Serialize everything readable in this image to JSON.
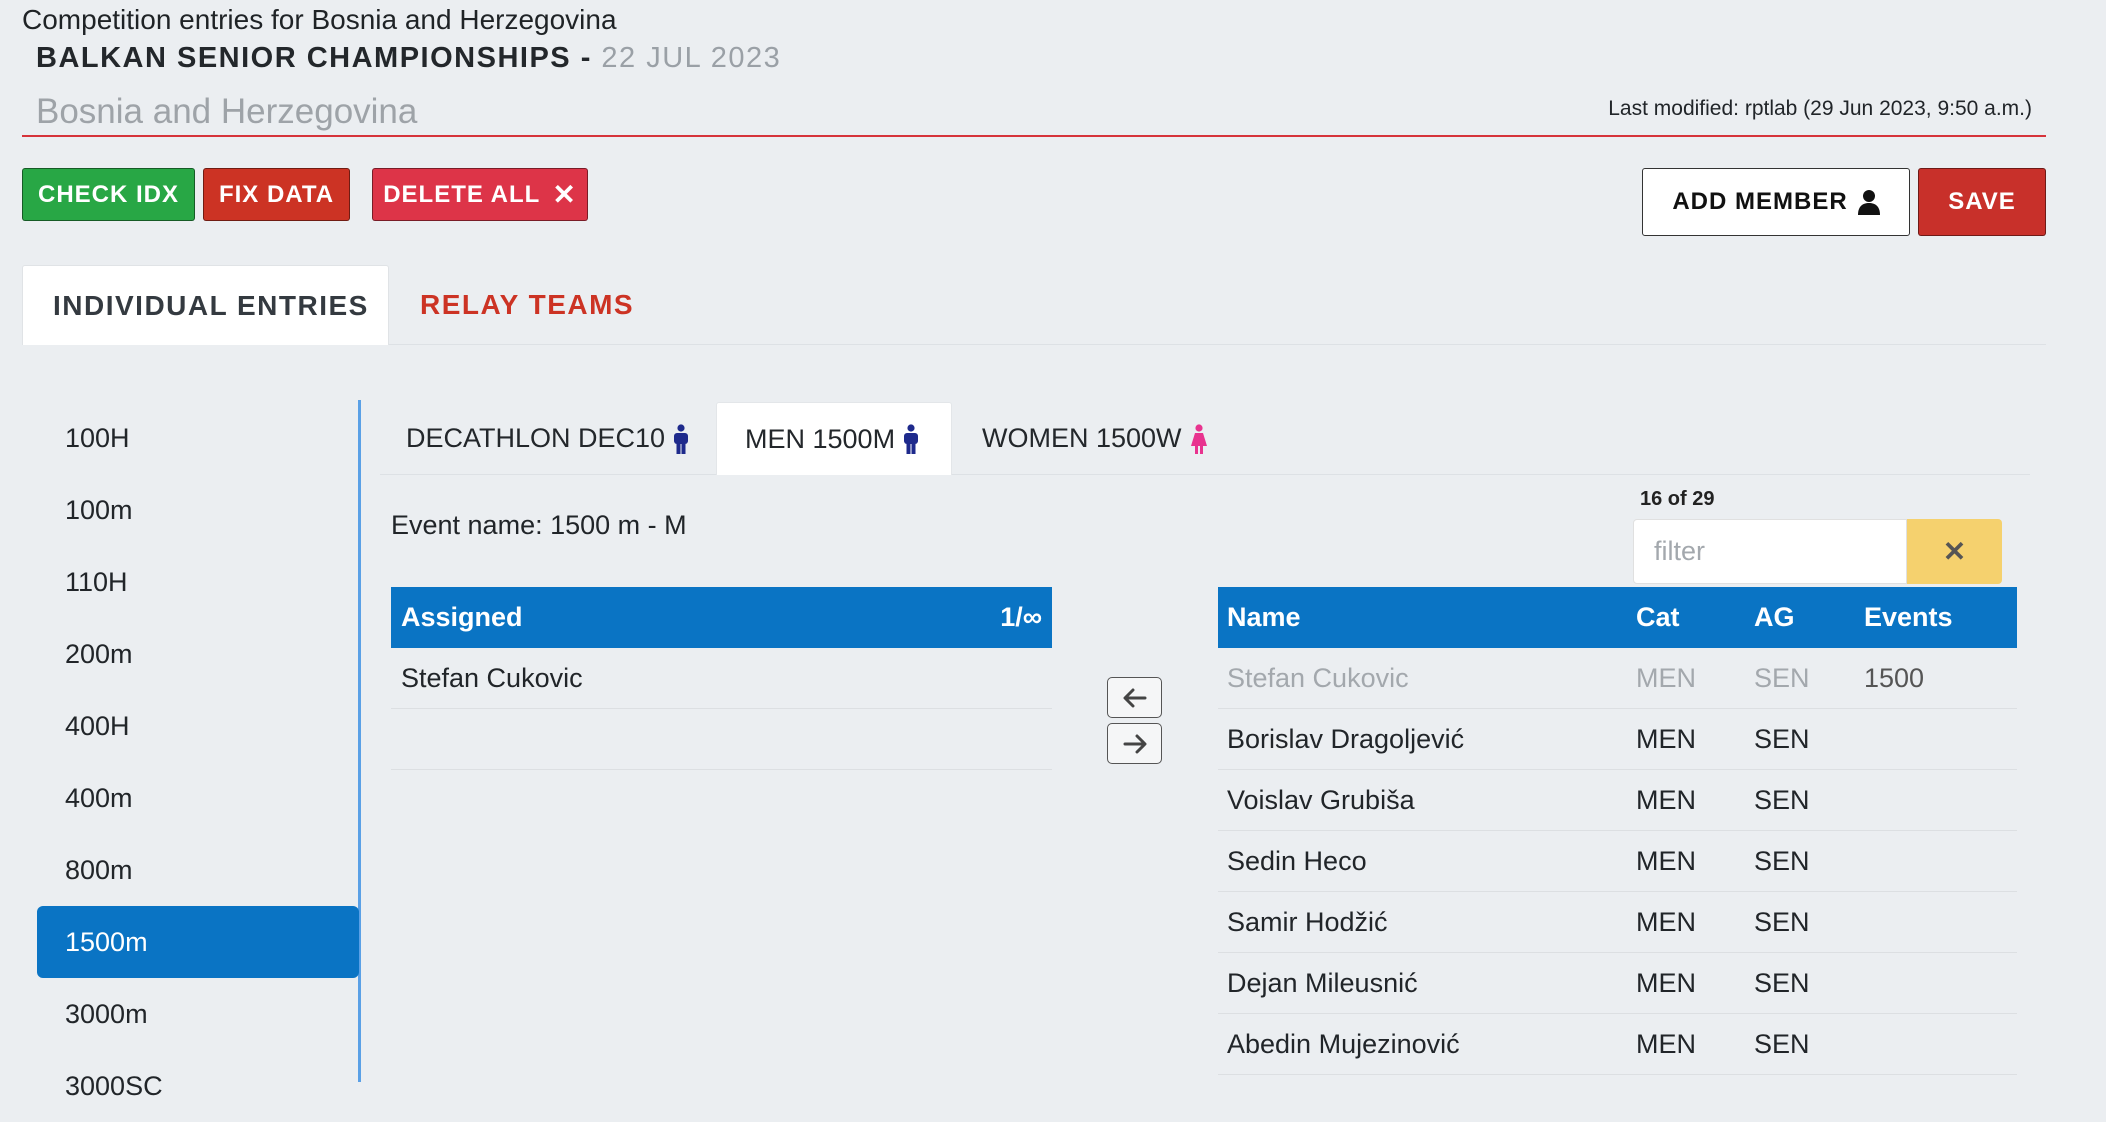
{
  "header": {
    "page_heading": "Competition entries for Bosnia and Herzegovina",
    "championship": "BALKAN SENIOR CHAMPIONSHIPS -",
    "date": "22 JUL 2023",
    "country": "Bosnia and Herzegovina",
    "last_modified": "Last modified: rptlab (29 Jun 2023, 9:50 a.m.)"
  },
  "toolbar": {
    "check_idx": "CHECK IDX",
    "fix_data": "FIX DATA",
    "delete_all": "DELETE ALL",
    "add_member": "ADD MEMBER",
    "save": "SAVE"
  },
  "main_tabs": [
    "INDIVIDUAL ENTRIES",
    "RELAY TEAMS"
  ],
  "events_sidebar": [
    "100H",
    "100m",
    "110H",
    "200m",
    "400H",
    "400m",
    "800m",
    "1500m",
    "3000m",
    "3000SC"
  ],
  "event_tabs": [
    "DECATHLON DEC10",
    "MEN 1500M",
    "WOMEN 1500W"
  ],
  "event_name": "Event name: 1500 m - M",
  "filter": {
    "count": "16 of 29",
    "placeholder": "filter"
  },
  "assigned": {
    "header": "Assigned",
    "count": "1/∞",
    "rows": [
      "Stefan Cukovic"
    ]
  },
  "members": {
    "columns": [
      "Name",
      "Cat",
      "AG",
      "Events"
    ],
    "rows": [
      [
        "Stefan Cukovic",
        "MEN",
        "SEN",
        "1500"
      ],
      [
        "Borislav Dragoljević",
        "MEN",
        "SEN",
        ""
      ],
      [
        "Voislav Grubiša",
        "MEN",
        "SEN",
        ""
      ],
      [
        "Sedin Heco",
        "MEN",
        "SEN",
        ""
      ],
      [
        "Samir Hodžić",
        "MEN",
        "SEN",
        ""
      ],
      [
        "Dejan Mileusnić",
        "MEN",
        "SEN",
        ""
      ],
      [
        "Abedin Mujezinović",
        "MEN",
        "SEN",
        ""
      ]
    ]
  },
  "colors": {
    "primary_blue": "#0a74c4",
    "red": "#cc3324",
    "green": "#28a745",
    "filter_clear_yellow": "#f5d16e",
    "male_icon": "#1e2a8c",
    "female_icon": "#e8338f"
  }
}
